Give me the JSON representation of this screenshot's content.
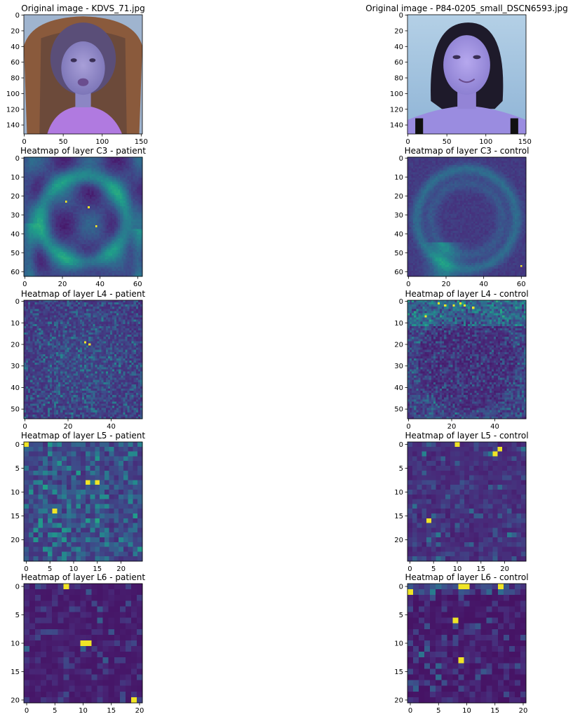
{
  "chart_data": [
    {
      "type": "image",
      "title": "Original image - KDVS_71.jpg",
      "xticks": [
        "0",
        "50",
        "100",
        "150"
      ],
      "yticks": [
        "0",
        "20",
        "40",
        "60",
        "80",
        "100",
        "120",
        "140"
      ],
      "xlim": [
        0,
        152
      ],
      "ylim": [
        152,
        0
      ]
    },
    {
      "type": "image",
      "title": "Original image - P84-0205_small_DSCN6593.jpg",
      "xticks": [
        "0",
        "50",
        "100",
        "150"
      ],
      "yticks": [
        "0",
        "20",
        "40",
        "60",
        "80",
        "100",
        "120",
        "140"
      ],
      "xlim": [
        0,
        152
      ],
      "ylim": [
        152,
        0
      ]
    },
    {
      "type": "heatmap",
      "title": "Heatmap of layer C3 - patient",
      "xticks": [
        "0",
        "20",
        "40",
        "60"
      ],
      "yticks": [
        "0",
        "10",
        "20",
        "30",
        "40",
        "50",
        "60"
      ],
      "xlim": [
        0,
        63
      ],
      "ylim": [
        63,
        0
      ],
      "colormap": "viridis",
      "hotspots": [
        [
          22,
          23
        ],
        [
          34,
          26
        ],
        [
          38,
          36
        ]
      ]
    },
    {
      "type": "heatmap",
      "title": "Heatmap of layer C3 - control",
      "xticks": [
        "0",
        "20",
        "40",
        "60"
      ],
      "yticks": [
        "0",
        "10",
        "20",
        "30",
        "40",
        "50",
        "60"
      ],
      "xlim": [
        0,
        63
      ],
      "ylim": [
        63,
        0
      ],
      "colormap": "viridis",
      "hotspots": [
        [
          60,
          57
        ]
      ]
    },
    {
      "type": "heatmap",
      "title": "Heatmap of layer L4 - patient",
      "xticks": [
        "0",
        "20",
        "40"
      ],
      "yticks": [
        "0",
        "10",
        "20",
        "30",
        "40",
        "50"
      ],
      "xlim": [
        0,
        55
      ],
      "ylim": [
        55,
        0
      ],
      "colormap": "viridis",
      "hotspots": [
        [
          30,
          20
        ],
        [
          28,
          19
        ]
      ]
    },
    {
      "type": "heatmap",
      "title": "Heatmap of layer L4 - control",
      "xticks": [
        "0",
        "20",
        "40"
      ],
      "yticks": [
        "0",
        "10",
        "20",
        "30",
        "40",
        "50"
      ],
      "xlim": [
        0,
        55
      ],
      "ylim": [
        55,
        0
      ],
      "colormap": "viridis",
      "hotspots": [
        [
          14,
          1
        ],
        [
          17,
          2
        ],
        [
          21,
          2
        ],
        [
          24,
          1
        ],
        [
          26,
          2
        ],
        [
          30,
          3
        ],
        [
          8,
          7
        ]
      ]
    },
    {
      "type": "heatmap",
      "title": "Heatmap of layer L5 - patient",
      "xticks": [
        "0",
        "5",
        "10",
        "15",
        "20"
      ],
      "yticks": [
        "0",
        "5",
        "10",
        "15",
        "20"
      ],
      "xlim": [
        0,
        25
      ],
      "ylim": [
        25,
        0
      ],
      "colormap": "viridis",
      "hotspots": [
        [
          13,
          8
        ],
        [
          15,
          8
        ],
        [
          6,
          14
        ],
        [
          0,
          0
        ]
      ]
    },
    {
      "type": "heatmap",
      "title": "Heatmap of layer L5 - control",
      "xticks": [
        "0",
        "5",
        "10",
        "15",
        "20"
      ],
      "yticks": [
        "0",
        "5",
        "10",
        "15",
        "20"
      ],
      "xlim": [
        0,
        25
      ],
      "ylim": [
        25,
        0
      ],
      "colormap": "viridis",
      "hotspots": [
        [
          19,
          1
        ],
        [
          10,
          0
        ],
        [
          18,
          2
        ],
        [
          4,
          16
        ]
      ]
    },
    {
      "type": "heatmap",
      "title": "Heatmap of layer L6 - patient",
      "xticks": [
        "0",
        "5",
        "10",
        "15",
        "20"
      ],
      "yticks": [
        "0",
        "5",
        "10",
        "15",
        "20"
      ],
      "xlim": [
        0,
        21
      ],
      "ylim": [
        21,
        0
      ],
      "colormap": "viridis",
      "hotspots": [
        [
          7,
          0
        ],
        [
          11,
          10
        ],
        [
          10,
          10
        ],
        [
          19,
          20
        ]
      ]
    },
    {
      "type": "heatmap",
      "title": "Heatmap of layer L6 - control",
      "xticks": [
        "0",
        "5",
        "10",
        "15",
        "20"
      ],
      "yticks": [
        "0",
        "5",
        "10",
        "15",
        "20"
      ],
      "xlim": [
        0,
        21
      ],
      "ylim": [
        21,
        0
      ],
      "colormap": "viridis",
      "hotspots": [
        [
          9,
          0
        ],
        [
          16,
          0
        ],
        [
          0,
          1
        ],
        [
          10,
          0
        ],
        [
          9,
          13
        ],
        [
          8,
          6
        ]
      ]
    }
  ]
}
